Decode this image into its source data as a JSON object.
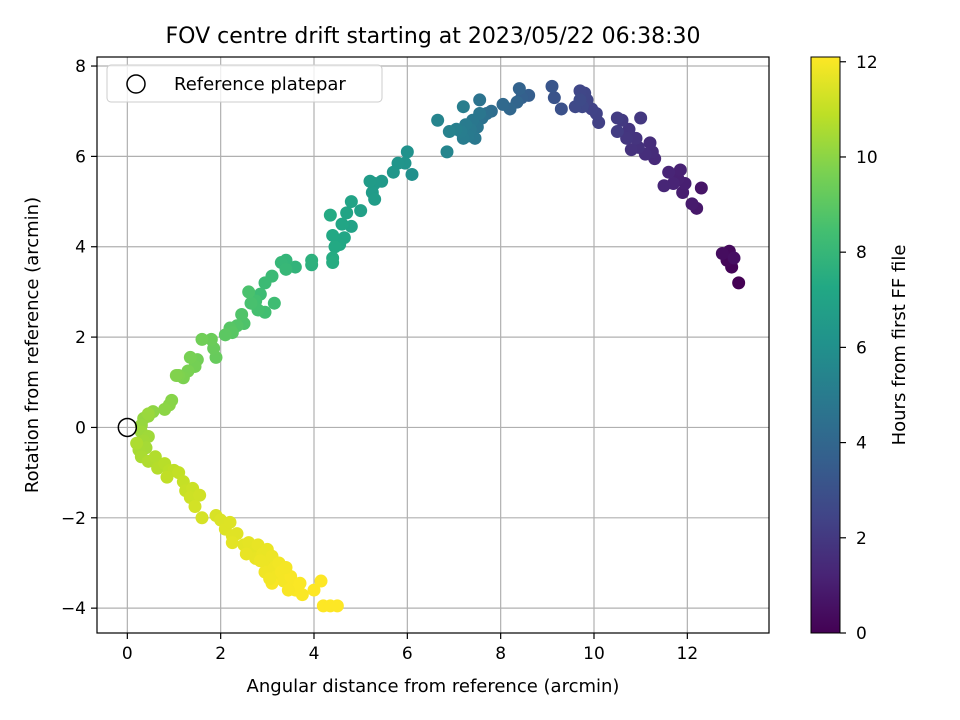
{
  "chart_data": {
    "type": "scatter",
    "title": "FOV centre drift starting at 2023/05/22 06:38:30",
    "xlabel": "Angular distance from reference (arcmin)",
    "ylabel": "Rotation from reference (arcmin)",
    "xlim": [
      -0.65,
      13.75
    ],
    "ylim": [
      -4.55,
      8.2
    ],
    "xticks": [
      0,
      2,
      4,
      6,
      8,
      10,
      12
    ],
    "yticks": [
      -4,
      -2,
      0,
      2,
      4,
      6,
      8
    ],
    "grid": true,
    "legend": {
      "placement": "top-left",
      "entries": [
        "Reference platepar"
      ]
    },
    "reference_point": {
      "x": 0,
      "y": 0
    },
    "colorbar": {
      "label": "Hours from first FF file",
      "colormap": "viridis",
      "range": [
        0,
        12.1
      ],
      "ticks": [
        0,
        2,
        4,
        6,
        8,
        10,
        12
      ]
    },
    "points": [
      [
        13.1,
        3.2,
        0.0
      ],
      [
        12.95,
        3.55,
        0.1
      ],
      [
        12.85,
        3.7,
        0.2
      ],
      [
        12.9,
        3.9,
        0.3
      ],
      [
        12.75,
        3.85,
        0.4
      ],
      [
        13.0,
        3.75,
        0.5
      ],
      [
        12.3,
        5.3,
        0.7
      ],
      [
        12.2,
        4.85,
        0.8
      ],
      [
        12.1,
        4.95,
        0.9
      ],
      [
        11.9,
        5.2,
        1.0
      ],
      [
        11.95,
        5.4,
        1.05
      ],
      [
        11.8,
        5.5,
        1.1
      ],
      [
        11.85,
        5.7,
        1.15
      ],
      [
        11.7,
        5.4,
        1.2
      ],
      [
        11.6,
        5.65,
        1.25
      ],
      [
        11.5,
        5.35,
        1.3
      ],
      [
        11.3,
        5.95,
        1.45
      ],
      [
        11.25,
        6.1,
        1.5
      ],
      [
        11.2,
        6.3,
        1.55
      ],
      [
        11.1,
        6.05,
        1.6
      ],
      [
        10.95,
        6.2,
        1.7
      ],
      [
        10.8,
        6.15,
        1.75
      ],
      [
        10.9,
        6.4,
        1.8
      ],
      [
        10.75,
        6.6,
        1.85
      ],
      [
        10.7,
        6.4,
        1.9
      ],
      [
        11.0,
        6.85,
        1.95
      ],
      [
        10.6,
        6.8,
        2.0
      ],
      [
        10.5,
        6.85,
        2.1
      ],
      [
        10.5,
        6.55,
        2.15
      ],
      [
        10.1,
        6.75,
        2.3
      ],
      [
        10.05,
        6.95,
        2.35
      ],
      [
        9.95,
        7.05,
        2.4
      ],
      [
        9.85,
        7.25,
        2.45
      ],
      [
        9.8,
        7.4,
        2.5
      ],
      [
        9.7,
        7.45,
        2.55
      ],
      [
        9.75,
        7.1,
        2.6
      ],
      [
        9.6,
        7.1,
        2.65
      ],
      [
        9.7,
        7.25,
        2.7
      ],
      [
        9.3,
        7.05,
        3.0
      ],
      [
        9.15,
        7.3,
        3.1
      ],
      [
        9.1,
        7.55,
        3.2
      ],
      [
        8.6,
        7.35,
        3.6
      ],
      [
        8.45,
        7.3,
        3.7
      ],
      [
        8.4,
        7.5,
        3.8
      ],
      [
        8.35,
        7.2,
        3.9
      ],
      [
        8.2,
        7.05,
        4.0
      ],
      [
        8.05,
        7.15,
        4.1
      ],
      [
        7.8,
        7.0,
        4.3
      ],
      [
        7.7,
        6.95,
        4.4
      ],
      [
        7.6,
        6.85,
        4.5
      ],
      [
        7.55,
        7.25,
        4.6
      ],
      [
        7.5,
        6.65,
        4.7
      ],
      [
        7.55,
        6.95,
        4.75
      ],
      [
        7.4,
        6.8,
        4.8
      ],
      [
        7.45,
        6.4,
        4.85
      ],
      [
        7.35,
        6.6,
        4.9
      ],
      [
        7.3,
        6.45,
        4.95
      ],
      [
        7.25,
        6.7,
        5.0
      ],
      [
        7.2,
        6.4,
        5.05
      ],
      [
        7.15,
        6.55,
        5.1
      ],
      [
        7.2,
        7.1,
        5.15
      ],
      [
        7.05,
        6.6,
        5.2
      ],
      [
        6.9,
        6.55,
        5.3
      ],
      [
        6.65,
        6.8,
        5.4
      ],
      [
        6.85,
        6.1,
        5.45
      ],
      [
        6.1,
        5.6,
        6.0
      ],
      [
        6.0,
        6.1,
        6.1
      ],
      [
        5.95,
        5.85,
        6.2
      ],
      [
        5.8,
        5.85,
        6.25
      ],
      [
        5.7,
        5.65,
        6.3
      ],
      [
        5.45,
        5.45,
        6.45
      ],
      [
        5.3,
        5.4,
        6.5
      ],
      [
        5.25,
        5.2,
        6.55
      ],
      [
        5.2,
        5.45,
        6.6
      ],
      [
        5.3,
        5.05,
        6.65
      ],
      [
        5.0,
        4.8,
        6.85
      ],
      [
        4.8,
        4.45,
        6.95
      ],
      [
        4.8,
        5.0,
        7.0
      ],
      [
        4.7,
        4.75,
        7.05
      ],
      [
        4.6,
        4.5,
        7.1
      ],
      [
        4.65,
        4.2,
        7.15
      ],
      [
        4.55,
        4.05,
        7.2
      ],
      [
        4.4,
        4.25,
        7.25
      ],
      [
        4.45,
        4.0,
        7.3
      ],
      [
        4.35,
        4.7,
        7.35
      ],
      [
        4.4,
        3.75,
        7.4
      ],
      [
        4.4,
        3.65,
        7.45
      ],
      [
        3.95,
        3.6,
        7.65
      ],
      [
        3.95,
        3.7,
        7.7
      ],
      [
        3.6,
        3.55,
        7.85
      ],
      [
        3.4,
        3.7,
        7.95
      ],
      [
        3.3,
        3.65,
        8.0
      ],
      [
        3.4,
        3.5,
        8.05
      ],
      [
        3.1,
        3.35,
        8.15
      ],
      [
        2.95,
        3.2,
        8.2
      ],
      [
        2.85,
        2.95,
        8.25
      ],
      [
        3.15,
        2.75,
        8.3
      ],
      [
        2.95,
        2.55,
        8.4
      ],
      [
        2.75,
        2.8,
        8.45
      ],
      [
        2.8,
        2.6,
        8.5
      ],
      [
        2.65,
        2.75,
        8.55
      ],
      [
        2.6,
        3.0,
        8.6
      ],
      [
        2.5,
        2.3,
        8.7
      ],
      [
        2.45,
        2.5,
        8.75
      ],
      [
        2.35,
        2.25,
        8.8
      ],
      [
        2.2,
        2.2,
        8.9
      ],
      [
        2.25,
        2.1,
        8.95
      ],
      [
        2.1,
        2.05,
        9.0
      ],
      [
        1.9,
        1.55,
        9.25
      ],
      [
        1.85,
        1.75,
        9.3
      ],
      [
        1.8,
        1.95,
        9.35
      ],
      [
        1.6,
        1.95,
        9.45
      ],
      [
        1.5,
        1.5,
        9.5
      ],
      [
        1.45,
        1.35,
        9.55
      ],
      [
        1.35,
        1.55,
        9.6
      ],
      [
        1.3,
        1.25,
        9.65
      ],
      [
        1.2,
        1.1,
        9.7
      ],
      [
        1.1,
        1.15,
        9.75
      ],
      [
        1.05,
        1.15,
        9.8
      ],
      [
        0.95,
        0.6,
        9.9
      ],
      [
        0.9,
        0.5,
        9.95
      ],
      [
        0.8,
        0.4,
        10.0
      ],
      [
        0.55,
        0.35,
        10.05
      ],
      [
        0.45,
        0.25,
        10.1
      ],
      [
        0.35,
        0.2,
        10.15
      ],
      [
        0.3,
        0.05,
        10.2
      ],
      [
        0.45,
        0.3,
        10.25
      ],
      [
        0.3,
        -0.1,
        10.3
      ],
      [
        0.45,
        -0.2,
        10.35
      ],
      [
        0.35,
        -0.3,
        10.4
      ],
      [
        0.4,
        -0.45,
        10.45
      ],
      [
        0.25,
        -0.5,
        10.5
      ],
      [
        0.3,
        -0.65,
        10.55
      ],
      [
        0.2,
        -0.35,
        10.6
      ],
      [
        0.45,
        -0.75,
        10.65
      ],
      [
        0.6,
        -0.65,
        10.7
      ],
      [
        0.65,
        -0.9,
        10.75
      ],
      [
        0.8,
        -0.8,
        10.8
      ],
      [
        0.9,
        -0.95,
        10.85
      ],
      [
        1.0,
        -0.95,
        10.9
      ],
      [
        0.85,
        -1.1,
        10.95
      ],
      [
        1.1,
        -1.0,
        11.0
      ],
      [
        1.2,
        -1.2,
        11.05
      ],
      [
        1.25,
        -1.4,
        11.1
      ],
      [
        1.4,
        -1.35,
        11.15
      ],
      [
        1.35,
        -1.55,
        11.2
      ],
      [
        1.55,
        -1.5,
        11.25
      ],
      [
        1.45,
        -1.75,
        11.3
      ],
      [
        1.6,
        -2.0,
        11.35
      ],
      [
        1.9,
        -1.95,
        11.4
      ],
      [
        2.0,
        -2.05,
        11.45
      ],
      [
        2.1,
        -2.25,
        11.5
      ],
      [
        2.2,
        -2.1,
        11.5
      ],
      [
        2.25,
        -2.4,
        11.55
      ],
      [
        2.35,
        -2.35,
        11.55
      ],
      [
        2.25,
        -2.55,
        11.6
      ],
      [
        2.5,
        -2.6,
        11.6
      ],
      [
        2.6,
        -2.55,
        11.65
      ],
      [
        2.7,
        -2.75,
        11.65
      ],
      [
        2.8,
        -2.6,
        11.7
      ],
      [
        2.75,
        -2.9,
        11.7
      ],
      [
        2.9,
        -2.8,
        11.75
      ],
      [
        3.0,
        -2.7,
        11.75
      ],
      [
        3.0,
        -3.0,
        11.8
      ],
      [
        3.1,
        -2.85,
        11.8
      ],
      [
        2.95,
        -3.2,
        11.85
      ],
      [
        3.15,
        -3.1,
        11.85
      ],
      [
        3.2,
        -3.3,
        11.9
      ],
      [
        3.25,
        -3.0,
        11.9
      ],
      [
        3.3,
        -3.2,
        11.95
      ],
      [
        3.35,
        -3.4,
        11.95
      ],
      [
        3.1,
        -3.45,
        12.0
      ],
      [
        3.5,
        -3.3,
        12.0
      ],
      [
        3.55,
        -3.5,
        12.0
      ],
      [
        3.7,
        -3.45,
        12.05
      ],
      [
        3.6,
        -3.6,
        12.05
      ],
      [
        3.75,
        -3.7,
        12.05
      ],
      [
        4.0,
        -3.6,
        12.1
      ],
      [
        4.15,
        -3.4,
        12.1
      ],
      [
        4.2,
        -3.95,
        12.1
      ],
      [
        4.35,
        -3.95,
        12.1
      ],
      [
        4.5,
        -3.95,
        12.1
      ],
      [
        3.4,
        -3.1,
        11.95
      ],
      [
        2.85,
        -2.95,
        11.8
      ],
      [
        2.55,
        -2.8,
        11.7
      ],
      [
        3.05,
        -3.35,
        11.9
      ],
      [
        3.45,
        -3.6,
        12.0
      ]
    ]
  }
}
